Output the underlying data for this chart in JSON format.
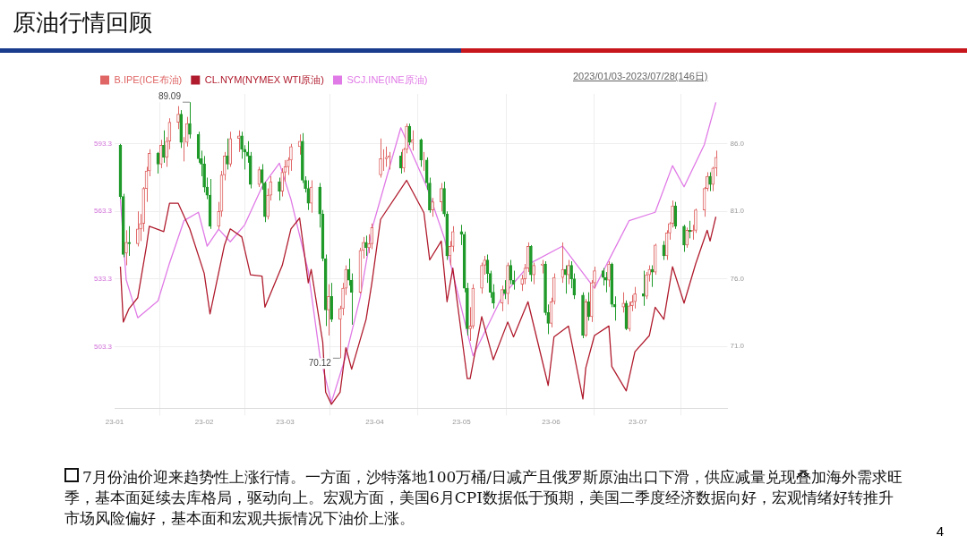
{
  "chart_data": {
    "type": "candlestick",
    "title": "原油行情回顾",
    "legend": "top left",
    "grid": true,
    "marker": "none",
    "xlim": [
      "2023-01-01",
      "2023-08-01"
    ],
    "xticks": [
      {
        "value": "2023-01-01",
        "label": "23-01"
      },
      {
        "value": "2023-02-01",
        "label": "23-02"
      },
      {
        "value": "2023-03-01",
        "label": "23-03"
      },
      {
        "value": "2023-04-01",
        "label": "23-04"
      },
      {
        "value": "2023-05-01",
        "label": "23-05"
      },
      {
        "value": "2023-06-01",
        "label": "23-06"
      },
      {
        "value": "2023-07-01",
        "label": "23-07"
      }
    ],
    "ylim": [
      475.9,
      615.4
    ],
    "yticks": [
      503.3,
      533.3,
      563.3,
      593.3
    ],
    "y2lim": [
      66.4,
      89.7
    ],
    "y2ticks": [
      {
        "value": 71,
        "label": "71.0"
      },
      {
        "value": 76,
        "label": "76.0"
      },
      {
        "value": 81,
        "label": "81.0"
      },
      {
        "value": 86,
        "label": "86.0"
      }
    ],
    "series": [
      {
        "name": "B.IPE(ICE布油)",
        "axis": "y2",
        "colors": [
          "#1f9a2a",
          "#1f9a2a",
          "#e06666",
          "#1f9a2a",
          "#e06666",
          "#e06666",
          "#e06666",
          "#e06666",
          "#e06666",
          "#1f9a2a",
          "#e06666",
          "#1f9a2a",
          "#e06666",
          "#e06666",
          "#e06666",
          "#1f9a2a",
          "#e06666",
          "#e06666",
          "#1f9a2a",
          "#1f9a2a",
          "#1f9a2a",
          "#1f9a2a",
          "#1f9a2a",
          "#1f9a2a",
          "#e06666",
          "#e06666",
          "#e06666",
          "#1f9a2a",
          "#e06666",
          "#e06666",
          "#1f9a2a",
          "#1f9a2a",
          "#1f9a2a",
          "#1f9a2a",
          "#e06666",
          "#1f9a2a",
          "#1f9a2a",
          "#e06666",
          "#e06666",
          "#1f9a2a",
          "#e06666",
          "#e06666",
          "#e06666",
          "#e06666",
          "#e06666",
          "#1f9a2a",
          "#1f9a2a",
          "#1f9a2a",
          "#e06666",
          "#1f9a2a",
          "#1f9a2a",
          "#1f9a2a",
          "#e06666",
          "#1f9a2a",
          "#e06666",
          "#e06666",
          "#e06666",
          "#1f9a2a",
          "#1f9a2a",
          "#e06666",
          "#e06666",
          "#1f9a2a",
          "#e06666",
          "#e06666",
          "#e06666",
          "#e06666",
          "#e06666",
          "#e06666",
          "#1f9a2a",
          "#e06666",
          "#e06666",
          "#1f9a2a",
          "#e06666",
          "#1f9a2a",
          "#e06666",
          "#1f9a2a",
          "#1f9a2a",
          "#e06666",
          "#e06666",
          "#1f9a2a",
          "#1f9a2a",
          "#e06666",
          "#e06666",
          "#1f9a2a",
          "#1f9a2a",
          "#1f9a2a",
          "#e06666",
          "#e06666",
          "#e06666",
          "#e06666",
          "#1f9a2a",
          "#1f9a2a",
          "#1f9a2a",
          "#e06666",
          "#1f9a2a",
          "#e06666",
          "#1f9a2a",
          "#1f9a2a",
          "#e06666",
          "#e06666",
          "#e06666",
          "#1f9a2a",
          "#e06666",
          "#e06666",
          "#1f9a2a",
          "#1f9a2a",
          "#e06666",
          "#e06666",
          "#e06666",
          "#1f9a2a",
          "#e06666",
          "#1f9a2a",
          "#1f9a2a",
          "#1f9a2a",
          "#e06666",
          "#1f9a2a",
          "#e06666",
          "#e06666",
          "#1f9a2a",
          "#1f9a2a",
          "#e06666",
          "#1f9a2a",
          "#1f9a2a",
          "#e06666",
          "#1f9a2a",
          "#e06666",
          "#e06666",
          "#e06666",
          "#1f9a2a",
          "#e06666",
          "#e06666",
          "#1f9a2a",
          "#e06666",
          "#1f9a2a",
          "#e06666",
          "#e06666",
          "#e06666",
          "#1f9a2a",
          "#1f9a2a",
          "#e06666",
          "#1f9a2a",
          "#e06666",
          "#e06666",
          "#e06666",
          "#e06666",
          "#1f9a2a",
          "#e06666",
          "#e06666"
        ],
        "x": [
          "2023-01-03",
          "2023-01-04",
          "2023-01-05",
          "2023-01-06",
          "2023-01-09",
          "2023-01-10",
          "2023-01-11",
          "2023-01-12",
          "2023-01-13",
          "2023-01-16",
          "2023-01-17",
          "2023-01-18",
          "2023-01-19",
          "2023-01-20",
          "2023-01-23",
          "2023-01-24",
          "2023-01-25",
          "2023-01-26",
          "2023-01-27",
          "2023-01-30",
          "2023-01-31",
          "2023-02-01",
          "2023-02-02",
          "2023-02-03",
          "2023-02-06",
          "2023-02-07",
          "2023-02-08",
          "2023-02-09",
          "2023-02-10",
          "2023-02-13",
          "2023-02-14",
          "2023-02-15",
          "2023-02-16",
          "2023-02-17",
          "2023-02-20",
          "2023-02-21",
          "2023-02-22",
          "2023-02-23",
          "2023-02-24",
          "2023-02-27",
          "2023-02-28",
          "2023-03-01",
          "2023-03-02",
          "2023-03-03",
          "2023-03-06",
          "2023-03-07",
          "2023-03-08",
          "2023-03-09",
          "2023-03-10",
          "2023-03-13",
          "2023-03-14",
          "2023-03-15",
          "2023-03-16",
          "2023-03-17",
          "2023-03-20",
          "2023-03-21",
          "2023-03-22",
          "2023-03-23",
          "2023-03-24",
          "2023-03-27",
          "2023-03-28",
          "2023-03-29",
          "2023-03-30",
          "2023-03-31",
          "2023-04-03",
          "2023-04-04",
          "2023-04-05",
          "2023-04-06",
          "2023-04-10",
          "2023-04-11",
          "2023-04-12",
          "2023-04-13",
          "2023-04-14",
          "2023-04-17",
          "2023-04-18",
          "2023-04-19",
          "2023-04-20",
          "2023-04-21",
          "2023-04-24",
          "2023-04-25",
          "2023-04-26",
          "2023-04-27",
          "2023-04-28",
          "2023-05-01",
          "2023-05-02",
          "2023-05-03",
          "2023-05-04",
          "2023-05-05",
          "2023-05-08",
          "2023-05-09",
          "2023-05-10",
          "2023-05-11",
          "2023-05-12",
          "2023-05-15",
          "2023-05-16",
          "2023-05-17",
          "2023-05-18",
          "2023-05-19",
          "2023-05-22",
          "2023-05-23",
          "2023-05-24",
          "2023-05-25",
          "2023-05-26",
          "2023-05-29",
          "2023-05-30",
          "2023-05-31",
          "2023-06-01",
          "2023-06-02",
          "2023-06-05",
          "2023-06-06",
          "2023-06-07",
          "2023-06-08",
          "2023-06-09",
          "2023-06-12",
          "2023-06-13",
          "2023-06-14",
          "2023-06-15",
          "2023-06-16",
          "2023-06-19",
          "2023-06-20",
          "2023-06-21",
          "2023-06-22",
          "2023-06-23",
          "2023-06-26",
          "2023-06-27",
          "2023-06-28",
          "2023-06-29",
          "2023-06-30",
          "2023-07-03",
          "2023-07-04",
          "2023-07-05",
          "2023-07-06",
          "2023-07-07",
          "2023-07-10",
          "2023-07-11",
          "2023-07-12",
          "2023-07-13",
          "2023-07-14",
          "2023-07-17",
          "2023-07-18",
          "2023-07-19",
          "2023-07-20",
          "2023-07-21",
          "2023-07-24",
          "2023-07-25",
          "2023-07-26",
          "2023-07-27",
          "2023-07-28"
        ],
        "ohlc": [
          [
            85.9,
            86.0,
            81.9,
            82.1
          ],
          [
            82.1,
            82.3,
            77.6,
            77.8
          ],
          [
            77.9,
            79.6,
            77.0,
            78.7
          ],
          [
            78.7,
            79.9,
            77.7,
            78.6
          ],
          [
            78.6,
            81.0,
            78.4,
            79.7
          ],
          [
            79.7,
            80.8,
            78.8,
            80.1
          ],
          [
            80.1,
            82.8,
            79.5,
            82.7
          ],
          [
            82.7,
            84.3,
            81.7,
            84.0
          ],
          [
            84.0,
            85.6,
            83.6,
            85.3
          ],
          [
            85.3,
            85.4,
            83.8,
            84.5
          ],
          [
            84.5,
            86.3,
            84.2,
            85.9
          ],
          [
            85.9,
            87.0,
            84.6,
            85.0
          ],
          [
            85.0,
            86.5,
            84.3,
            86.2
          ],
          [
            86.2,
            87.9,
            85.6,
            87.6
          ],
          [
            87.6,
            88.8,
            87.1,
            88.2
          ],
          [
            88.2,
            88.5,
            85.7,
            86.1
          ],
          [
            86.1,
            86.5,
            84.7,
            86.1
          ],
          [
            86.1,
            88.0,
            85.8,
            87.5
          ],
          [
            87.5,
            89.09,
            86.4,
            86.7
          ],
          [
            86.7,
            86.9,
            84.6,
            84.9
          ],
          [
            84.9,
            85.5,
            83.6,
            84.5
          ],
          [
            84.5,
            85.1,
            82.4,
            82.8
          ],
          [
            82.8,
            83.5,
            81.9,
            82.2
          ],
          [
            82.2,
            83.4,
            79.7,
            79.9
          ],
          [
            79.9,
            81.7,
            79.7,
            81.0
          ],
          [
            81.0,
            84.0,
            80.6,
            83.7
          ],
          [
            83.7,
            85.4,
            83.3,
            85.1
          ],
          [
            85.1,
            86.4,
            84.1,
            84.5
          ],
          [
            84.5,
            86.9,
            84.3,
            86.4
          ],
          [
            86.4,
            87.0,
            85.4,
            86.6
          ],
          [
            86.6,
            86.9,
            84.9,
            85.6
          ],
          [
            85.6,
            85.9,
            84.1,
            85.4
          ],
          [
            85.4,
            86.2,
            84.6,
            85.1
          ],
          [
            85.1,
            85.4,
            82.7,
            83.0
          ],
          [
            83.0,
            84.3,
            82.8,
            84.1
          ],
          [
            84.1,
            84.5,
            82.6,
            83.1
          ],
          [
            83.1,
            83.2,
            80.2,
            80.6
          ],
          [
            80.6,
            82.7,
            80.4,
            82.2
          ],
          [
            82.2,
            83.6,
            81.8,
            83.2
          ],
          [
            83.2,
            83.5,
            81.8,
            82.5
          ],
          [
            82.5,
            84.2,
            82.1,
            83.9
          ],
          [
            83.9,
            84.8,
            83.2,
            84.3
          ],
          [
            84.3,
            85.0,
            83.7,
            84.8
          ],
          [
            84.8,
            86.0,
            84.0,
            85.8
          ],
          [
            85.8,
            86.7,
            85.2,
            86.2
          ],
          [
            86.2,
            86.8,
            83.1,
            83.3
          ],
          [
            83.3,
            83.6,
            82.4,
            82.7
          ],
          [
            82.7,
            83.3,
            81.1,
            81.6
          ],
          [
            81.6,
            83.3,
            80.9,
            82.8
          ],
          [
            82.8,
            83.1,
            79.8,
            80.8
          ],
          [
            80.8,
            81.1,
            77.3,
            77.5
          ],
          [
            77.5,
            77.8,
            72.5,
            73.7
          ],
          [
            73.7,
            75.6,
            71.8,
            74.7
          ],
          [
            74.7,
            75.7,
            72.8,
            73.0
          ],
          [
            73.0,
            74.0,
            70.12,
            73.8
          ],
          [
            73.8,
            75.7,
            73.3,
            75.3
          ],
          [
            75.3,
            77.0,
            74.8,
            76.7
          ],
          [
            76.7,
            77.5,
            75.5,
            75.9
          ],
          [
            75.9,
            76.4,
            72.6,
            75.0
          ],
          [
            75.0,
            78.3,
            74.9,
            78.1
          ],
          [
            78.1,
            79.1,
            77.5,
            78.7
          ],
          [
            78.7,
            79.2,
            77.7,
            78.3
          ],
          [
            78.3,
            79.3,
            77.9,
            78.6
          ],
          [
            78.6,
            80.1,
            78.2,
            79.8
          ],
          [
            83.7,
            86.4,
            83.5,
            84.9
          ],
          [
            84.9,
            85.6,
            84.0,
            84.9
          ],
          [
            84.9,
            85.8,
            84.3,
            85.0
          ],
          [
            85.0,
            85.4,
            84.1,
            85.1
          ],
          [
            85.1,
            85.4,
            83.8,
            84.2
          ],
          [
            84.2,
            85.7,
            83.9,
            85.6
          ],
          [
            85.6,
            87.5,
            85.3,
            87.3
          ],
          [
            87.3,
            87.5,
            85.9,
            86.1
          ],
          [
            86.1,
            87.0,
            85.5,
            86.3
          ],
          [
            86.3,
            86.4,
            84.3,
            84.8
          ],
          [
            84.8,
            85.4,
            84.0,
            84.8
          ],
          [
            84.8,
            85.0,
            82.6,
            83.1
          ],
          [
            83.1,
            83.5,
            80.9,
            81.1
          ],
          [
            81.1,
            82.0,
            80.6,
            81.7
          ],
          [
            81.7,
            83.1,
            81.0,
            82.7
          ],
          [
            82.7,
            83.2,
            80.6,
            80.8
          ],
          [
            80.8,
            81.0,
            77.4,
            77.7
          ],
          [
            77.7,
            78.8,
            77.0,
            78.4
          ],
          [
            78.4,
            79.9,
            78.0,
            79.5
          ],
          [
            79.5,
            80.0,
            78.5,
            79.3
          ],
          [
            79.3,
            79.5,
            75.0,
            75.3
          ],
          [
            75.3,
            75.7,
            71.8,
            72.3
          ],
          [
            72.3,
            73.9,
            71.4,
            72.5
          ],
          [
            72.5,
            75.6,
            72.3,
            75.3
          ],
          [
            75.3,
            77.2,
            74.9,
            77.0
          ],
          [
            77.0,
            77.7,
            76.3,
            77.4
          ],
          [
            77.4,
            77.8,
            75.7,
            76.4
          ],
          [
            76.4,
            76.6,
            74.6,
            75.0
          ],
          [
            75.0,
            75.6,
            73.8,
            74.2
          ],
          [
            74.2,
            75.5,
            73.6,
            75.2
          ],
          [
            75.2,
            75.9,
            74.5,
            74.9
          ],
          [
            74.9,
            77.2,
            74.1,
            77.0
          ],
          [
            77.0,
            77.4,
            75.6,
            75.9
          ],
          [
            75.9,
            76.6,
            75.2,
            75.6
          ],
          [
            75.6,
            76.3,
            75.1,
            76.0
          ],
          [
            76.0,
            77.1,
            75.6,
            76.8
          ],
          [
            76.8,
            78.7,
            76.5,
            78.4
          ],
          [
            78.4,
            78.5,
            75.8,
            76.3
          ],
          [
            76.3,
            77.2,
            75.6,
            77.0
          ],
          [
            77.0,
            77.4,
            76.4,
            77.1
          ],
          [
            77.1,
            77.3,
            73.3,
            73.5
          ],
          [
            73.5,
            74.1,
            71.9,
            72.7
          ],
          [
            72.7,
            74.6,
            72.4,
            74.3
          ],
          [
            74.3,
            76.4,
            74.1,
            76.1
          ],
          [
            76.1,
            78.7,
            75.7,
            76.7
          ],
          [
            76.7,
            77.0,
            74.9,
            76.3
          ],
          [
            76.3,
            77.4,
            75.6,
            77.0
          ],
          [
            77.0,
            77.3,
            75.3,
            76.0
          ],
          [
            76.0,
            76.4,
            74.5,
            74.8
          ],
          [
            74.8,
            75.0,
            71.6,
            71.8
          ],
          [
            71.8,
            74.5,
            71.7,
            74.3
          ],
          [
            74.3,
            75.0,
            72.9,
            73.2
          ],
          [
            73.2,
            75.9,
            72.8,
            75.7
          ],
          [
            75.7,
            76.9,
            75.3,
            76.6
          ],
          [
            76.6,
            76.8,
            75.5,
            76.1
          ],
          [
            76.1,
            76.5,
            75.0,
            75.9
          ],
          [
            75.9,
            77.3,
            75.4,
            77.1
          ],
          [
            77.1,
            77.2,
            73.9,
            74.1
          ],
          [
            74.1,
            74.7,
            72.9,
            73.9
          ],
          [
            73.9,
            75.0,
            73.5,
            74.2
          ],
          [
            74.2,
            74.4,
            72.2,
            72.3
          ],
          [
            72.3,
            74.3,
            72.1,
            74.0
          ],
          [
            74.0,
            74.8,
            73.6,
            74.3
          ],
          [
            74.3,
            75.4,
            73.8,
            74.9
          ],
          [
            74.9,
            76.6,
            74.0,
            74.7
          ],
          [
            74.7,
            76.5,
            74.5,
            76.3
          ],
          [
            76.3,
            77.0,
            75.8,
            76.7
          ],
          [
            76.7,
            77.0,
            75.4,
            76.5
          ],
          [
            76.5,
            78.6,
            76.3,
            78.5
          ],
          [
            78.5,
            78.8,
            77.4,
            77.7
          ],
          [
            77.7,
            79.6,
            77.4,
            79.4
          ],
          [
            79.4,
            80.2,
            78.9,
            80.1
          ],
          [
            80.1,
            81.8,
            79.8,
            81.4
          ],
          [
            81.4,
            81.7,
            79.7,
            79.9
          ],
          [
            79.9,
            80.0,
            78.0,
            78.5
          ],
          [
            78.5,
            79.8,
            78.3,
            79.6
          ],
          [
            79.6,
            80.3,
            79.0,
            79.5
          ],
          [
            79.5,
            80.0,
            78.9,
            79.6
          ],
          [
            79.6,
            81.2,
            79.4,
            81.1
          ],
          [
            81.1,
            82.8,
            80.6,
            82.7
          ],
          [
            82.7,
            83.9,
            82.5,
            83.6
          ],
          [
            83.6,
            83.9,
            82.5,
            83.0
          ],
          [
            83.0,
            84.3,
            82.5,
            84.2
          ],
          [
            84.2,
            85.5,
            83.6,
            85.0
          ]
        ]
      },
      {
        "name": "CL.NYM(NYMEX WTI原油)",
        "type": "line",
        "axis": "y2",
        "color": "#b01c2e",
        "x": [
          "2023-01-03",
          "2023-01-04",
          "2023-01-06",
          "2023-01-09",
          "2023-01-12",
          "2023-01-13",
          "2023-01-18",
          "2023-01-20",
          "2023-01-23",
          "2023-01-27",
          "2023-02-01",
          "2023-02-03",
          "2023-02-08",
          "2023-02-10",
          "2023-02-14",
          "2023-02-17",
          "2023-02-21",
          "2023-02-22",
          "2023-02-28",
          "2023-03-03",
          "2023-03-06",
          "2023-03-09",
          "2023-03-10",
          "2023-03-14",
          "2023-03-15",
          "2023-03-17",
          "2023-03-20",
          "2023-03-22",
          "2023-03-24",
          "2023-03-29",
          "2023-03-31",
          "2023-04-03",
          "2023-04-12",
          "2023-04-18",
          "2023-04-20",
          "2023-04-24",
          "2023-04-26",
          "2023-04-28",
          "2023-05-03",
          "2023-05-04",
          "2023-05-08",
          "2023-05-12",
          "2023-05-17",
          "2023-05-19",
          "2023-05-24",
          "2023-05-31",
          "2023-06-02",
          "2023-06-07",
          "2023-06-12",
          "2023-06-13",
          "2023-06-16",
          "2023-06-21",
          "2023-06-22",
          "2023-06-27",
          "2023-06-30",
          "2023-07-05",
          "2023-07-07",
          "2023-07-10",
          "2023-07-13",
          "2023-07-17",
          "2023-07-21",
          "2023-07-25",
          "2023-07-26",
          "2023-07-28"
        ],
        "values": [
          76.9,
          72.8,
          73.8,
          74.6,
          78.4,
          79.9,
          79.5,
          81.6,
          81.6,
          79.7,
          76.4,
          73.4,
          78.5,
          79.7,
          79.1,
          76.3,
          76.2,
          73.9,
          77.0,
          79.7,
          80.5,
          75.7,
          76.7,
          71.3,
          67.6,
          66.7,
          67.6,
          70.9,
          69.3,
          73.0,
          75.7,
          80.4,
          83.3,
          80.9,
          77.4,
          78.8,
          74.3,
          76.8,
          68.6,
          68.6,
          73.2,
          70.0,
          72.8,
          71.7,
          74.3,
          68.1,
          71.7,
          72.5,
          67.1,
          69.4,
          71.8,
          72.5,
          69.5,
          67.7,
          70.6,
          71.8,
          73.9,
          73.0,
          76.9,
          74.2,
          77.1,
          79.6,
          78.8,
          80.6
        ]
      },
      {
        "name": "SCJ.INE(INE原油)",
        "type": "line",
        "axis": "y",
        "color": "#e07ae6",
        "x": [
          "2023-01-03",
          "2023-01-05",
          "2023-01-09",
          "2023-01-16",
          "2023-01-20",
          "2023-01-25",
          "2023-01-30",
          "2023-02-02",
          "2023-02-06",
          "2023-02-10",
          "2023-02-15",
          "2023-02-21",
          "2023-02-27",
          "2023-03-03",
          "2023-03-09",
          "2023-03-13",
          "2023-03-17",
          "2023-03-22",
          "2023-03-27",
          "2023-03-31",
          "2023-04-10",
          "2023-04-19",
          "2023-04-25",
          "2023-05-05",
          "2023-05-15",
          "2023-05-25",
          "2023-06-05",
          "2023-06-16",
          "2023-06-28",
          "2023-07-07",
          "2023-07-13",
          "2023-07-17",
          "2023-07-24",
          "2023-07-28"
        ],
        "values": [
          568.6,
          533.0,
          516.1,
          523.6,
          540.4,
          559.2,
          562.9,
          547.9,
          555.4,
          549.8,
          557.3,
          574.2,
          584.7,
          568.6,
          536.7,
          499.2,
          478.6,
          499.2,
          525.4,
          555.4,
          600.4,
          574.2,
          551.7,
          499.2,
          525.4,
          540.4,
          547.9,
          529.2,
          559.2,
          562.9,
          583.6,
          574.2,
          592.9,
          611.7
        ]
      }
    ],
    "annotations": [
      "89.09",
      "70.12",
      "2023/01/03-2023/07/28(146日)",
      "7月份油价迎来趋势性上涨行情。一方面，沙特落地100万桶/日减产且俄罗斯原油出口下滑，供应减量兑现叠加海外需求旺季，基本面延续去库格局，驱动向上。宏观方面，美国6月CPI数据低于预期，美国二季度经济数据向好，宏观情绪好转推升市场风险偏好，基本面和宏观共振情况下油价上涨。",
      "4"
    ]
  }
}
